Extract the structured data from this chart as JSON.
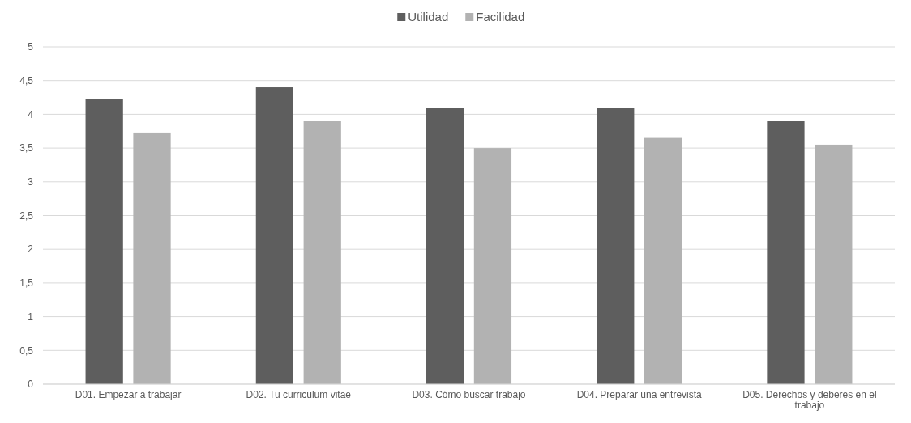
{
  "chart_data": {
    "type": "bar",
    "categories": [
      "D01. Empezar a trabajar",
      "D02. Tu curriculum vitae",
      "D03. Cómo buscar trabajo",
      "D04. Preparar una entrevista",
      "D05. Derechos y deberes en el trabajo"
    ],
    "series": [
      {
        "name": "Utilidad",
        "color": "#5e5e5e",
        "values": [
          4.23,
          4.4,
          4.1,
          4.1,
          3.9
        ]
      },
      {
        "name": "Facilidad",
        "color": "#b2b2b2",
        "values": [
          3.73,
          3.9,
          3.5,
          3.65,
          3.55
        ]
      }
    ],
    "ylim": [
      0,
      5
    ],
    "yticks": [
      0,
      {
        "value": 0.5,
        "label": "0,5"
      },
      1,
      {
        "value": 1.5,
        "label": "1,5"
      },
      2,
      {
        "value": 2.5,
        "label": "2,5"
      },
      3,
      {
        "value": 3.5,
        "label": "3,5"
      },
      4,
      {
        "value": 4.5,
        "label": "4,5"
      },
      5
    ],
    "grid": "y",
    "legend": "top"
  }
}
